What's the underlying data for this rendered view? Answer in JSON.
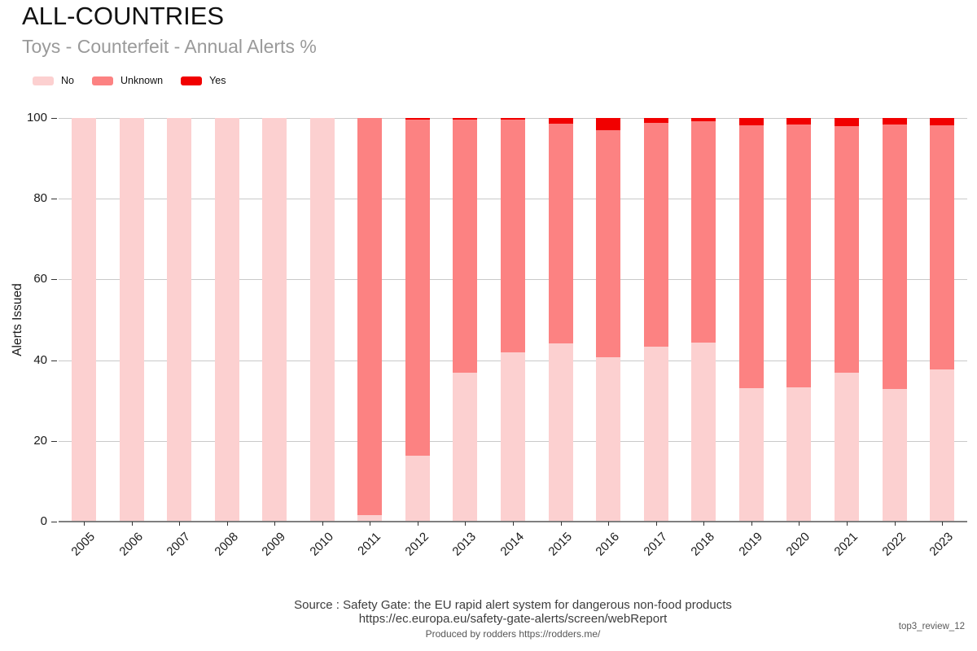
{
  "header": {
    "title": "ALL-COUNTRIES",
    "subtitle": "Toys - Counterfeit - Annual Alerts %"
  },
  "chart_data": {
    "type": "bar",
    "stacked": true,
    "title": "ALL-COUNTRIES",
    "subtitle": "Toys - Counterfeit - Annual Alerts %",
    "xlabel": "",
    "ylabel": "Alerts Issued",
    "ylim": [
      0,
      100
    ],
    "yticks": [
      0,
      20,
      40,
      60,
      80,
      100
    ],
    "grid": true,
    "legend_position": "top-left",
    "categories": [
      "2005",
      "2006",
      "2007",
      "2008",
      "2009",
      "2010",
      "2011",
      "2012",
      "2013",
      "2014",
      "2015",
      "2016",
      "2017",
      "2018",
      "2019",
      "2020",
      "2021",
      "2022",
      "2023"
    ],
    "series": [
      {
        "name": "No",
        "color": "#FCD0D0",
        "values": [
          100,
          100,
          100,
          100,
          100,
          100,
          1.7,
          16.4,
          36.9,
          41.9,
          44.1,
          40.8,
          43.3,
          44.3,
          33.1,
          33.3,
          36.8,
          32.9,
          37.7
        ]
      },
      {
        "name": "Unknown",
        "color": "#FC8282",
        "values": [
          0,
          0,
          0,
          0,
          0,
          0,
          98.3,
          83.3,
          62.8,
          57.8,
          54.4,
          56.2,
          55.5,
          54.9,
          65.0,
          65.1,
          61.2,
          65.5,
          60.4
        ]
      },
      {
        "name": "Yes",
        "color": "#F10000",
        "values": [
          0,
          0,
          0,
          0,
          0,
          0,
          0,
          0.3,
          0.3,
          0.3,
          1.5,
          3.0,
          1.2,
          0.8,
          1.9,
          1.6,
          2.0,
          1.6,
          1.9
        ]
      }
    ]
  },
  "footer": {
    "source_line1": "Source : Safety Gate: the EU rapid alert system for dangerous non-food products",
    "source_line2": "https://ec.europa.eu/safety-gate-alerts/screen/webReport",
    "produced_by": "Produced by rodders https://rodders.me/",
    "annotation": "top3_review_12"
  },
  "style_colors": {
    "gridline": "#C9C9C9",
    "axis_line": "#7F7F7F",
    "subtitle_gray": "#9A9A9A"
  }
}
